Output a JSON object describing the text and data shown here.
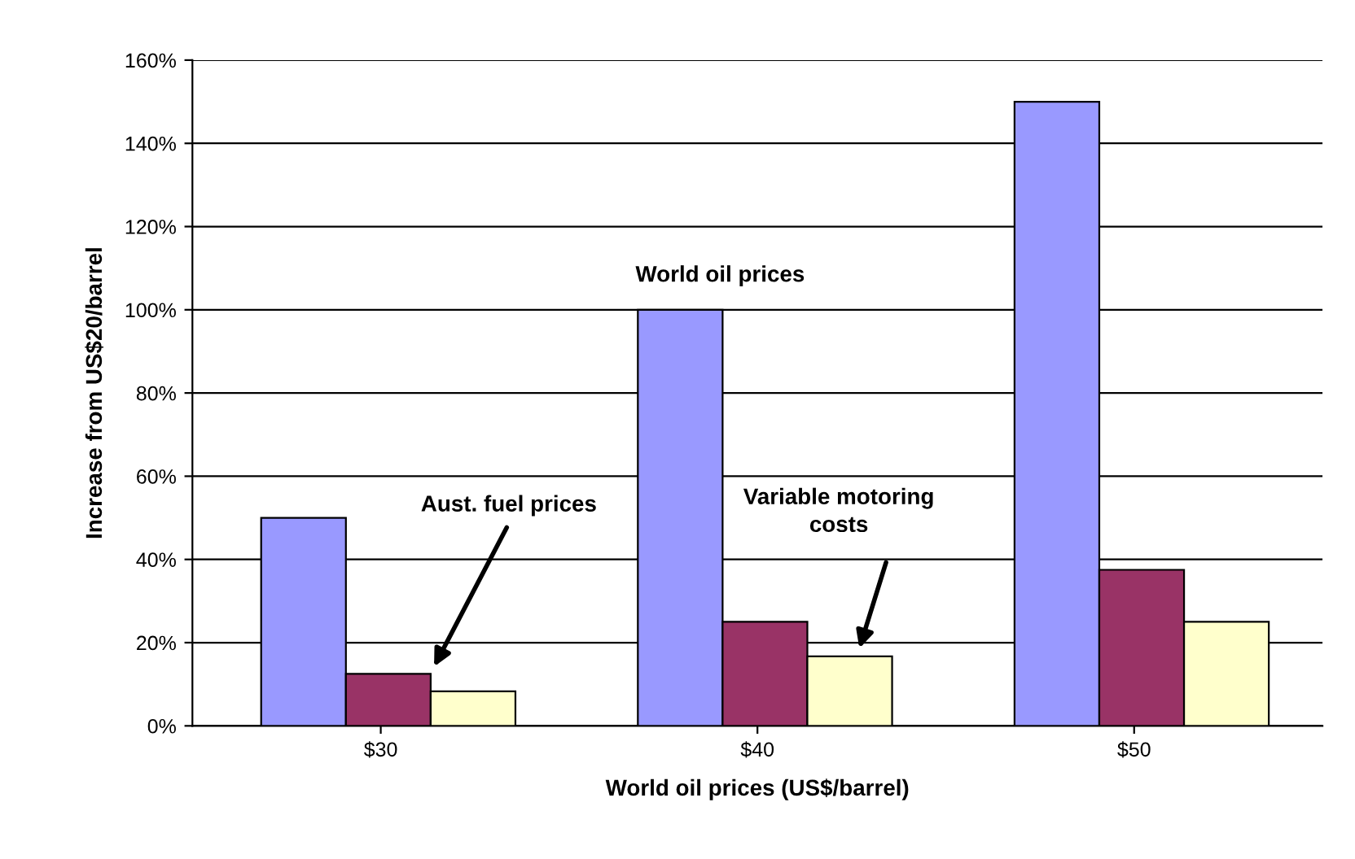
{
  "chart_data": {
    "type": "bar",
    "xlabel": "World oil prices (US$/barrel)",
    "ylabel": "Increase from US$20/barrel",
    "categories": [
      "$30",
      "$40",
      "$50"
    ],
    "series": [
      {
        "color": "#9999ff",
        "values": [
          50,
          100,
          150
        ]
      },
      {
        "color": "#993366",
        "values": [
          12.5,
          25,
          37.5
        ]
      },
      {
        "color": "#ffffcc",
        "values": [
          8.3,
          16.7,
          25
        ]
      }
    ],
    "ylim": [
      0,
      160
    ],
    "yticks": [
      {
        "value": 0,
        "label": "0%"
      },
      {
        "value": 20,
        "label": "20%"
      },
      {
        "value": 40,
        "label": "40%"
      },
      {
        "value": 60,
        "label": "60%"
      },
      {
        "value": 80,
        "label": "80%"
      },
      {
        "value": 100,
        "label": "100%"
      },
      {
        "value": 120,
        "label": "120%"
      },
      {
        "value": 140,
        "label": "140%"
      },
      {
        "value": 160,
        "label": "160%"
      }
    ],
    "grid": "y",
    "legend": false,
    "annotations": [
      "World oil prices",
      "Aust. fuel prices",
      "Variable motoring costs"
    ]
  }
}
